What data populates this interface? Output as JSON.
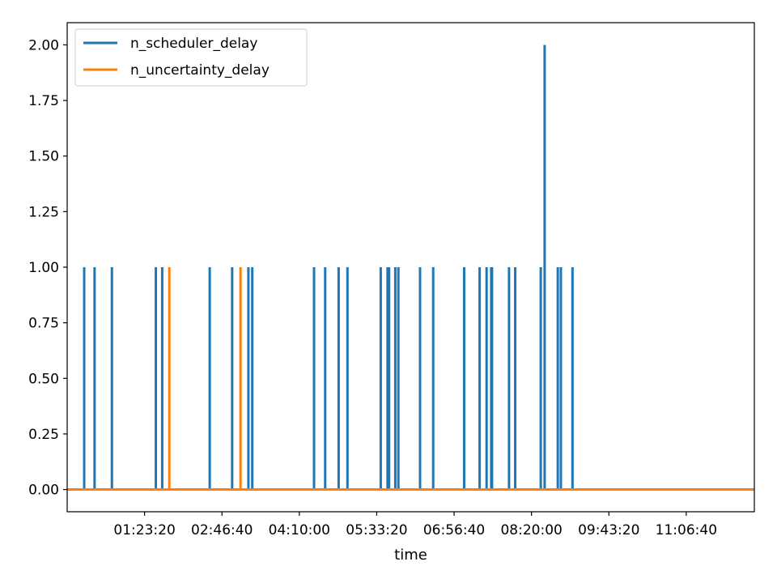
{
  "chart_data": {
    "type": "line",
    "title": "",
    "xlabel": "time",
    "ylabel": "",
    "x_unit": "time of day (HH:MM:SS)",
    "xlim": [
      "00:00:00",
      "12:20:00"
    ],
    "ylim": [
      -0.1,
      2.1
    ],
    "x_ticks": [
      "01:23:20",
      "02:46:40",
      "04:10:00",
      "05:33:20",
      "06:56:40",
      "08:20:00",
      "09:43:20",
      "11:06:40"
    ],
    "y_ticks": [
      "0.00",
      "0.25",
      "0.50",
      "0.75",
      "1.00",
      "1.25",
      "1.50",
      "1.75",
      "2.00"
    ],
    "grid": false,
    "legend_position": "top-left",
    "series": [
      {
        "name": "n_scheduler_delay",
        "color": "#1f77b4",
        "baseline": 0,
        "events": [
          {
            "time": "00:18:20",
            "value": 1
          },
          {
            "time": "00:29:30",
            "value": 1
          },
          {
            "time": "00:48:10",
            "value": 1
          },
          {
            "time": "01:35:30",
            "value": 1
          },
          {
            "time": "01:42:20",
            "value": 1
          },
          {
            "time": "02:33:30",
            "value": 1
          },
          {
            "time": "02:57:40",
            "value": 1
          },
          {
            "time": "03:15:10",
            "value": 1
          },
          {
            "time": "03:19:20",
            "value": 1
          },
          {
            "time": "04:25:50",
            "value": 1
          },
          {
            "time": "04:37:50",
            "value": 1
          },
          {
            "time": "04:52:20",
            "value": 1
          },
          {
            "time": "05:01:50",
            "value": 1
          },
          {
            "time": "05:37:40",
            "value": 1
          },
          {
            "time": "05:45:00",
            "value": 1
          },
          {
            "time": "05:46:40",
            "value": 1
          },
          {
            "time": "05:53:20",
            "value": 1
          },
          {
            "time": "05:56:40",
            "value": 1
          },
          {
            "time": "06:20:00",
            "value": 1
          },
          {
            "time": "06:34:10",
            "value": 1
          },
          {
            "time": "07:07:30",
            "value": 1
          },
          {
            "time": "07:24:10",
            "value": 1
          },
          {
            "time": "07:31:40",
            "value": 1
          },
          {
            "time": "07:36:40",
            "value": 1
          },
          {
            "time": "07:37:30",
            "value": 1
          },
          {
            "time": "07:55:50",
            "value": 1
          },
          {
            "time": "08:02:30",
            "value": 1
          },
          {
            "time": "08:30:00",
            "value": 1
          },
          {
            "time": "08:34:10",
            "value": 2
          },
          {
            "time": "08:48:20",
            "value": 1
          },
          {
            "time": "08:51:40",
            "value": 1
          },
          {
            "time": "09:04:10",
            "value": 1
          }
        ]
      },
      {
        "name": "n_uncertainty_delay",
        "color": "#ff7f0e",
        "baseline": 0,
        "events": [
          {
            "time": "01:50:00",
            "value": 1
          },
          {
            "time": "03:06:40",
            "value": 1
          }
        ]
      }
    ]
  }
}
